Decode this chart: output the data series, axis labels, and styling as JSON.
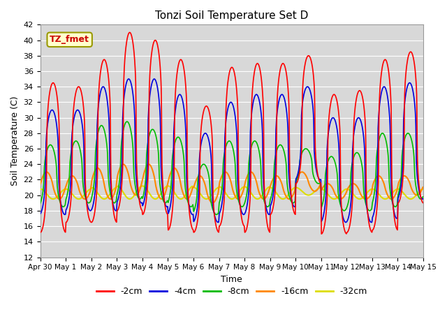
{
  "title": "Tonzi Soil Temperature Set D",
  "xlabel": "Time",
  "ylabel": "Soil Temperature (C)",
  "ylim": [
    12,
    42
  ],
  "yticks": [
    12,
    14,
    16,
    18,
    20,
    22,
    24,
    26,
    28,
    30,
    32,
    34,
    36,
    38,
    40,
    42
  ],
  "plot_bg_color": "#d8d8d8",
  "fig_bg_color": "#ffffff",
  "annotation_text": "TZ_fmet",
  "annotation_bg": "#ffffcc",
  "annotation_fg": "#cc0000",
  "annotation_edge": "#999900",
  "series_colors": [
    "#ff0000",
    "#0000dd",
    "#00bb00",
    "#ff8800",
    "#dddd00"
  ],
  "series_labels": [
    "-2cm",
    "-4cm",
    "-8cm",
    "-16cm",
    "-32cm"
  ],
  "x_tick_labels": [
    "Apr 30",
    "May 1",
    "May 2",
    "May 3",
    "May 4",
    "May 5",
    "May 6",
    "May 7",
    "May 8",
    "May 9",
    "May 10",
    "May 11",
    "May 12",
    "May 13",
    "May 14",
    "May 15"
  ],
  "n_days": 15,
  "points_per_day": 96,
  "grid_color": "#ffffff",
  "tick_fontsize": 8,
  "title_fontsize": 11
}
